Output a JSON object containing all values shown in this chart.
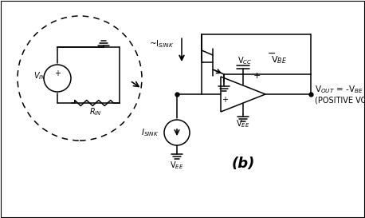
{
  "background_color": "#ffffff",
  "figsize": [
    4.58,
    2.73
  ],
  "dpi": 100,
  "label_b": "(b)",
  "vout_label": "V$_{OUT}$ = -V$_{BE}$",
  "vout_label2": "(POSITIVE VOLTAGE)",
  "isink_approx": "~I$_{SINK}$",
  "isink_label": "I$_{SINK}$",
  "vbe_label": "V$_{BE}$",
  "vcc_label": "V$_{CC}$",
  "vee_label": "V$_{EE}$",
  "vin_label": "V$_{IN}$",
  "rin_label": "R$_{IN}$",
  "minus_sign": "−",
  "plus_sign": "+"
}
